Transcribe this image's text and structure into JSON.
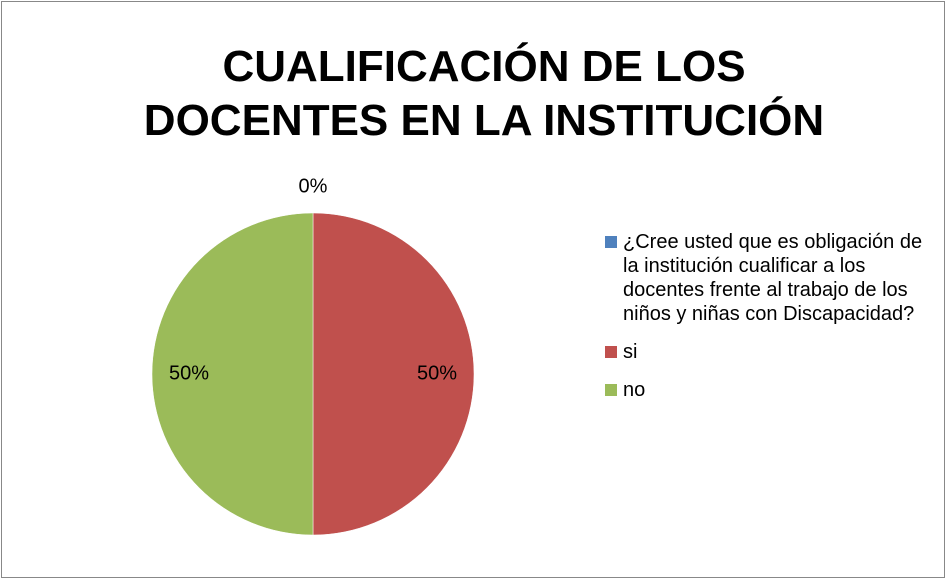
{
  "chart_data": {
    "type": "pie",
    "title": "CUALIFICACIÓN DE LOS DOCENTES EN LA INSTITUCIÓN",
    "categories": [
      "¿Cree usted que es obligación de la institución cualificar a los docentes frente al trabajo de los niños y niñas con Discapacidad?",
      "si",
      "no"
    ],
    "values": [
      0,
      50,
      50
    ],
    "value_labels": [
      "0%",
      "50%",
      "50%"
    ],
    "colors": [
      "#4f81bd",
      "#c0504d",
      "#9bbb59"
    ],
    "legend": "right"
  }
}
